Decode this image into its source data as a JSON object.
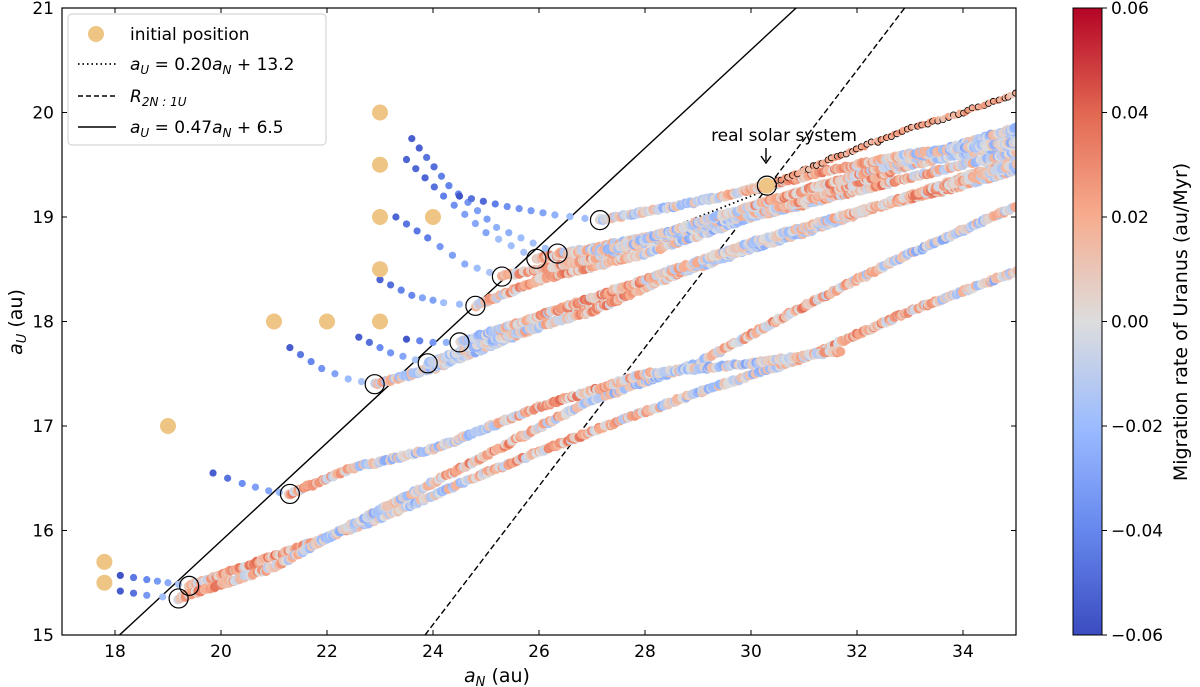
{
  "chart_data": {
    "type": "scatter",
    "title": "",
    "xlabel": "a_N (au)",
    "ylabel": "a_U (au)",
    "xlim": [
      17,
      35
    ],
    "ylim": [
      15,
      21
    ],
    "x_ticks": [
      18,
      20,
      22,
      24,
      26,
      28,
      30,
      32,
      34
    ],
    "y_ticks": [
      15,
      16,
      17,
      18,
      19,
      20,
      21
    ],
    "colorbar": {
      "label": "Migration rate of Uranus (au/Myr)",
      "range": [
        -0.06,
        0.06
      ],
      "ticks": [
        "−0.06",
        "−0.04",
        "−0.02",
        "0.00",
        "0.02",
        "0.04",
        "0.06"
      ],
      "colormap": "coolwarm",
      "colors": [
        "#3b4cc0",
        "#dddddd",
        "#b40426"
      ]
    },
    "legend": {
      "position": "top-left",
      "entries": [
        {
          "key": "initial",
          "text": "initial position",
          "style": "filled-circle",
          "color": "#eec584"
        },
        {
          "key": "dotted",
          "text": "= 0.20",
          "full": "a_U = 0.20 a_N + 13.2",
          "style": "dotted"
        },
        {
          "key": "dashed",
          "text": "R_2N:1U",
          "style": "dashed"
        },
        {
          "key": "solid",
          "text": "= 0.47",
          "full": "a_U = 0.47 a_N + 6.5",
          "style": "solid"
        }
      ]
    },
    "lines": [
      {
        "name": "a_U = 0.47 a_N + 6.5",
        "style": "solid",
        "slope": 0.47,
        "intercept": 6.5
      },
      {
        "name": "a_U = 0.20 a_N + 13.2",
        "style": "dotted",
        "x_range": [
          25.0,
          30.4
        ],
        "slope": 0.2,
        "intercept": 13.2
      },
      {
        "name": "R_2N:1U",
        "style": "dashed",
        "points": [
          [
            23.85,
            15.0
          ],
          [
            32.9,
            21.0
          ]
        ]
      }
    ],
    "annotation": {
      "text": "real solar system",
      "x": 30.35,
      "y": 19.3
    },
    "initial_positions": [
      [
        17.8,
        15.7
      ],
      [
        17.8,
        15.5
      ],
      [
        19.0,
        17.0
      ],
      [
        21.0,
        18.0
      ],
      [
        22.0,
        18.0
      ],
      [
        23.0,
        18.0
      ],
      [
        23.0,
        18.5
      ],
      [
        23.0,
        19.0
      ],
      [
        23.0,
        19.5
      ],
      [
        23.0,
        20.0
      ],
      [
        24.0,
        19.0
      ],
      [
        30.3,
        19.3
      ]
    ],
    "crossing_points": [
      [
        19.2,
        15.35
      ],
      [
        19.4,
        15.47
      ],
      [
        21.3,
        16.35
      ],
      [
        22.9,
        17.4
      ],
      [
        23.9,
        17.6
      ],
      [
        24.5,
        17.8
      ],
      [
        24.8,
        18.15
      ],
      [
        25.3,
        18.43
      ],
      [
        25.95,
        18.6
      ],
      [
        26.35,
        18.65
      ],
      [
        27.15,
        18.97
      ],
      [
        30.3,
        19.3
      ]
    ],
    "series": [
      {
        "name": "track-1",
        "initial": [
          17.8,
          15.7
        ],
        "pre": [
          [
            18.1,
            15.57
          ],
          [
            18.6,
            15.53
          ],
          [
            19.0,
            15.5
          ],
          [
            19.4,
            15.47
          ]
        ],
        "post": [
          [
            19.4,
            15.47
          ],
          [
            21.0,
            15.75
          ],
          [
            23.0,
            16.12
          ],
          [
            25.0,
            16.55
          ],
          [
            27.0,
            16.95
          ],
          [
            29.0,
            17.32
          ],
          [
            31.0,
            17.65
          ],
          [
            33.0,
            18.1
          ],
          [
            35.0,
            18.48
          ]
        ]
      },
      {
        "name": "track-2",
        "initial": [
          17.8,
          15.5
        ],
        "pre": [
          [
            18.1,
            15.42
          ],
          [
            18.6,
            15.38
          ],
          [
            19.2,
            15.35
          ]
        ],
        "post": [
          [
            19.2,
            15.35
          ],
          [
            21.0,
            15.65
          ],
          [
            23.0,
            16.2
          ],
          [
            25.0,
            16.72
          ],
          [
            27.0,
            17.25
          ],
          [
            29.0,
            17.6
          ],
          [
            31.0,
            18.15
          ],
          [
            33.0,
            18.65
          ],
          [
            35.0,
            19.1
          ]
        ]
      },
      {
        "name": "track-3",
        "initial": [
          19.0,
          17.0
        ],
        "pre": [
          [
            19.85,
            16.55
          ],
          [
            20.4,
            16.45
          ],
          [
            20.9,
            16.38
          ],
          [
            21.3,
            16.35
          ]
        ],
        "post": [
          [
            21.3,
            16.35
          ],
          [
            22.5,
            16.6
          ],
          [
            24.0,
            16.78
          ],
          [
            26.0,
            17.18
          ],
          [
            28.0,
            17.5
          ],
          [
            30.0,
            17.6
          ],
          [
            31.7,
            17.72
          ]
        ]
      },
      {
        "name": "track-4",
        "initial": [
          21.0,
          18.0
        ],
        "pre": [
          [
            21.3,
            17.75
          ],
          [
            21.9,
            17.55
          ],
          [
            22.4,
            17.45
          ],
          [
            22.9,
            17.4
          ]
        ],
        "post": [
          [
            22.9,
            17.4
          ],
          [
            24.0,
            17.55
          ],
          [
            26.0,
            17.95
          ],
          [
            28.0,
            18.35
          ],
          [
            30.0,
            18.7
          ],
          [
            32.0,
            19.05
          ],
          [
            34.0,
            19.3
          ],
          [
            35.0,
            19.45
          ]
        ]
      },
      {
        "name": "track-5",
        "initial": [
          22.0,
          18.0
        ],
        "pre": [
          [
            22.6,
            17.85
          ],
          [
            23.2,
            17.7
          ],
          [
            23.9,
            17.6
          ]
        ],
        "post": [
          [
            23.9,
            17.6
          ],
          [
            25.0,
            17.8
          ],
          [
            27.0,
            18.1
          ],
          [
            29.0,
            18.55
          ],
          [
            31.0,
            18.85
          ],
          [
            33.0,
            19.2
          ],
          [
            35.0,
            19.55
          ]
        ]
      },
      {
        "name": "track-6",
        "initial": [
          23.0,
          18.0
        ],
        "pre": [
          [
            23.5,
            17.83
          ],
          [
            24.0,
            17.8
          ],
          [
            24.5,
            17.8
          ]
        ],
        "post": [
          [
            24.5,
            17.8
          ],
          [
            26.0,
            18.05
          ],
          [
            28.0,
            18.4
          ],
          [
            30.0,
            18.75
          ],
          [
            32.0,
            19.05
          ],
          [
            34.0,
            19.35
          ],
          [
            35.0,
            19.5
          ]
        ]
      },
      {
        "name": "track-7",
        "initial": [
          23.0,
          18.5
        ],
        "pre": [
          [
            23.0,
            18.4
          ],
          [
            23.6,
            18.25
          ],
          [
            24.2,
            18.18
          ],
          [
            24.8,
            18.15
          ]
        ],
        "post": [
          [
            24.8,
            18.15
          ],
          [
            26.0,
            18.4
          ],
          [
            28.0,
            18.65
          ],
          [
            30.0,
            19.0
          ],
          [
            32.0,
            19.25
          ],
          [
            34.0,
            19.5
          ],
          [
            35.0,
            19.62
          ]
        ]
      },
      {
        "name": "track-8",
        "initial": [
          23.0,
          19.0
        ],
        "pre": [
          [
            23.3,
            19.0
          ],
          [
            23.9,
            18.8
          ],
          [
            24.6,
            18.55
          ],
          [
            25.3,
            18.43
          ]
        ],
        "post": [
          [
            25.3,
            18.43
          ],
          [
            27.0,
            18.6
          ],
          [
            29.0,
            18.9
          ],
          [
            31.0,
            19.25
          ],
          [
            33.0,
            19.55
          ],
          [
            35.0,
            19.8
          ]
        ]
      },
      {
        "name": "track-9",
        "initial": [
          23.0,
          19.5
        ],
        "pre": [
          [
            23.5,
            19.55
          ],
          [
            24.2,
            19.2
          ],
          [
            25.0,
            18.85
          ],
          [
            25.95,
            18.6
          ]
        ],
        "post": [
          [
            25.95,
            18.6
          ],
          [
            27.0,
            18.7
          ],
          [
            29.0,
            18.9
          ],
          [
            31.0,
            19.15
          ],
          [
            33.0,
            19.5
          ],
          [
            35.0,
            19.7
          ]
        ]
      },
      {
        "name": "track-10",
        "initial": [
          23.0,
          20.0
        ],
        "pre": [
          [
            23.6,
            19.75
          ],
          [
            24.3,
            19.3
          ],
          [
            25.2,
            18.9
          ],
          [
            26.35,
            18.65
          ]
        ],
        "post": [
          [
            26.35,
            18.65
          ],
          [
            27.5,
            18.7
          ],
          [
            29.0,
            18.95
          ],
          [
            31.0,
            19.25
          ],
          [
            33.0,
            19.55
          ],
          [
            35.0,
            19.85
          ]
        ]
      },
      {
        "name": "track-11",
        "initial": [
          24.0,
          19.0
        ],
        "pre": [
          [
            24.5,
            19.2
          ],
          [
            25.4,
            19.1
          ],
          [
            26.3,
            19.02
          ],
          [
            27.15,
            18.97
          ]
        ],
        "post": [
          [
            27.15,
            18.97
          ],
          [
            28.5,
            19.1
          ],
          [
            29.5,
            19.2
          ],
          [
            30.3,
            19.3
          ],
          [
            31.5,
            19.45
          ],
          [
            33.0,
            19.6
          ],
          [
            35.0,
            19.72
          ]
        ]
      },
      {
        "name": "track-12",
        "initial": [
          30.3,
          19.3
        ],
        "pre": [],
        "post": [
          [
            30.3,
            19.3
          ],
          [
            31.0,
            19.45
          ],
          [
            32.0,
            19.65
          ],
          [
            33.0,
            19.85
          ],
          [
            34.0,
            20.0
          ],
          [
            35.0,
            20.18
          ]
        ]
      }
    ]
  }
}
